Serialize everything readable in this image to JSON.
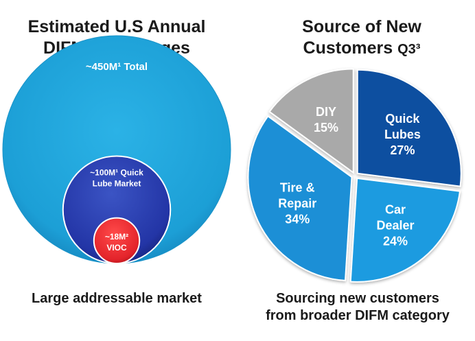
{
  "left_panel": {
    "title_line1": "Estimated U.S Annual",
    "title_line2": "DIFM Oil Changes",
    "caption": "Large addressable market"
  },
  "right_panel": {
    "title_line1": "Source of New",
    "title_line2": "Customers",
    "title_suffix": "Q3³",
    "caption_line1": "Sourcing new customers",
    "caption_line2": "from broader DIFM category"
  },
  "chart_data": [
    {
      "type": "bubble",
      "unit": "M",
      "circles": [
        {
          "label": "~450M¹ Total",
          "value": 450,
          "color": "#1fa3d8"
        },
        {
          "label_lines": [
            "~100M¹ Quick",
            "Lube Market"
          ],
          "value": 100,
          "color": "#2536a8"
        },
        {
          "label_lines": [
            "~18M²",
            "VIOC"
          ],
          "value": 18,
          "color": "#e8262c"
        }
      ]
    },
    {
      "type": "pie",
      "slices": [
        {
          "label_lines": [
            "Quick",
            "Lubes"
          ],
          "value": 27,
          "value_label": "27%",
          "color": "#0d4fa0"
        },
        {
          "label_lines": [
            "Car",
            "Dealer"
          ],
          "value": 24,
          "value_label": "24%",
          "color": "#1a9be0"
        },
        {
          "label_lines": [
            "Tire &",
            "Repair"
          ],
          "value": 34,
          "value_label": "34%",
          "color": "#1a8fd6"
        },
        {
          "label_lines": [
            "DIY"
          ],
          "value": 15,
          "value_label": "15%",
          "color": "#a9a9a9"
        }
      ]
    }
  ]
}
